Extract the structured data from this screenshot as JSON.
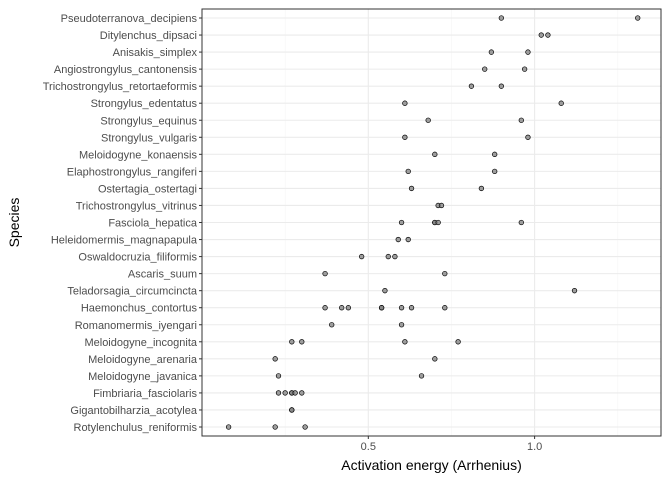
{
  "chart_data": {
    "type": "scatter",
    "xlabel": "Activation energy (Arrhenius)",
    "ylabel": "Species",
    "xlim": [
      0.0,
      1.38
    ],
    "x_ticks": [
      0.5,
      1.0
    ],
    "x_tick_labels": [
      "0.5",
      "1.0"
    ],
    "grid": true,
    "legend": "none",
    "colors": {
      "point_fill": "#808080",
      "point_stroke": "#000000",
      "grid_major": "#ebebeb",
      "grid_minor": "#f5f5f5",
      "panel_border": "#333333"
    },
    "species": [
      "Pseudoterranova_decipiens",
      "Ditylenchus_dipsaci",
      "Anisakis_simplex",
      "Angiostrongylus_cantonensis",
      "Trichostrongylus_retortaeformis",
      "Strongylus_edentatus",
      "Strongylus_equinus",
      "Strongylus_vulgaris",
      "Meloidogyne_konaensis",
      "Elaphostrongylus_rangiferi",
      "Ostertagia_ostertagi",
      "Trichostrongylus_vitrinus",
      "Fasciola_hepatica",
      "Heleidomermis_magnapapula",
      "Oswaldocruzia_filiformis",
      "Ascaris_suum",
      "Teladorsagia_circumcincta",
      "Haemonchus_contortus",
      "Romanomermis_iyengari",
      "Meloidogyne_incognita",
      "Meloidogyne_arenaria",
      "Meloidogyne_javanica",
      "Fimbriaria_fasciolaris",
      "Gigantobilharzia_acotylea",
      "Rotylenchulus_reniformis"
    ],
    "points": [
      {
        "species": "Pseudoterranova_decipiens",
        "x": [
          0.9,
          1.31
        ]
      },
      {
        "species": "Ditylenchus_dipsaci",
        "x": [
          1.02,
          1.04
        ]
      },
      {
        "species": "Anisakis_simplex",
        "x": [
          0.87,
          0.98
        ]
      },
      {
        "species": "Angiostrongylus_cantonensis",
        "x": [
          0.85,
          0.97
        ]
      },
      {
        "species": "Trichostrongylus_retortaeformis",
        "x": [
          0.81,
          0.9
        ]
      },
      {
        "species": "Strongylus_edentatus",
        "x": [
          0.61,
          1.08
        ]
      },
      {
        "species": "Strongylus_equinus",
        "x": [
          0.68,
          0.96
        ]
      },
      {
        "species": "Strongylus_vulgaris",
        "x": [
          0.61,
          0.98
        ]
      },
      {
        "species": "Meloidogyne_konaensis",
        "x": [
          0.7,
          0.88
        ]
      },
      {
        "species": "Elaphostrongylus_rangiferi",
        "x": [
          0.62,
          0.88
        ]
      },
      {
        "species": "Ostertagia_ostertagi",
        "x": [
          0.63,
          0.84
        ]
      },
      {
        "species": "Trichostrongylus_vitrinus",
        "x": [
          0.71,
          0.72
        ]
      },
      {
        "species": "Fasciola_hepatica",
        "x": [
          0.6,
          0.7,
          0.7,
          0.71,
          0.96
        ]
      },
      {
        "species": "Heleidomermis_magnapapula",
        "x": [
          0.59,
          0.62
        ]
      },
      {
        "species": "Oswaldocruzia_filiformis",
        "x": [
          0.48,
          0.56,
          0.58
        ]
      },
      {
        "species": "Ascaris_suum",
        "x": [
          0.37,
          0.73
        ]
      },
      {
        "species": "Teladorsagia_circumcincta",
        "x": [
          0.55,
          1.12
        ]
      },
      {
        "species": "Haemonchus_contortus",
        "x": [
          0.37,
          0.42,
          0.44,
          0.54,
          0.54,
          0.6,
          0.63,
          0.73
        ]
      },
      {
        "species": "Romanomermis_iyengari",
        "x": [
          0.39,
          0.6
        ]
      },
      {
        "species": "Meloidogyne_incognita",
        "x": [
          0.27,
          0.3,
          0.61,
          0.77
        ]
      },
      {
        "species": "Meloidogyne_arenaria",
        "x": [
          0.22,
          0.7
        ]
      },
      {
        "species": "Meloidogyne_javanica",
        "x": [
          0.23,
          0.66
        ]
      },
      {
        "species": "Fimbriaria_fasciolaris",
        "x": [
          0.23,
          0.25,
          0.27,
          0.27,
          0.28,
          0.3
        ]
      },
      {
        "species": "Gigantobilharzia_acotylea",
        "x": [
          0.27,
          0.27
        ]
      },
      {
        "species": "Rotylenchulus_reniformis",
        "x": [
          0.08,
          0.22,
          0.31
        ]
      }
    ]
  }
}
